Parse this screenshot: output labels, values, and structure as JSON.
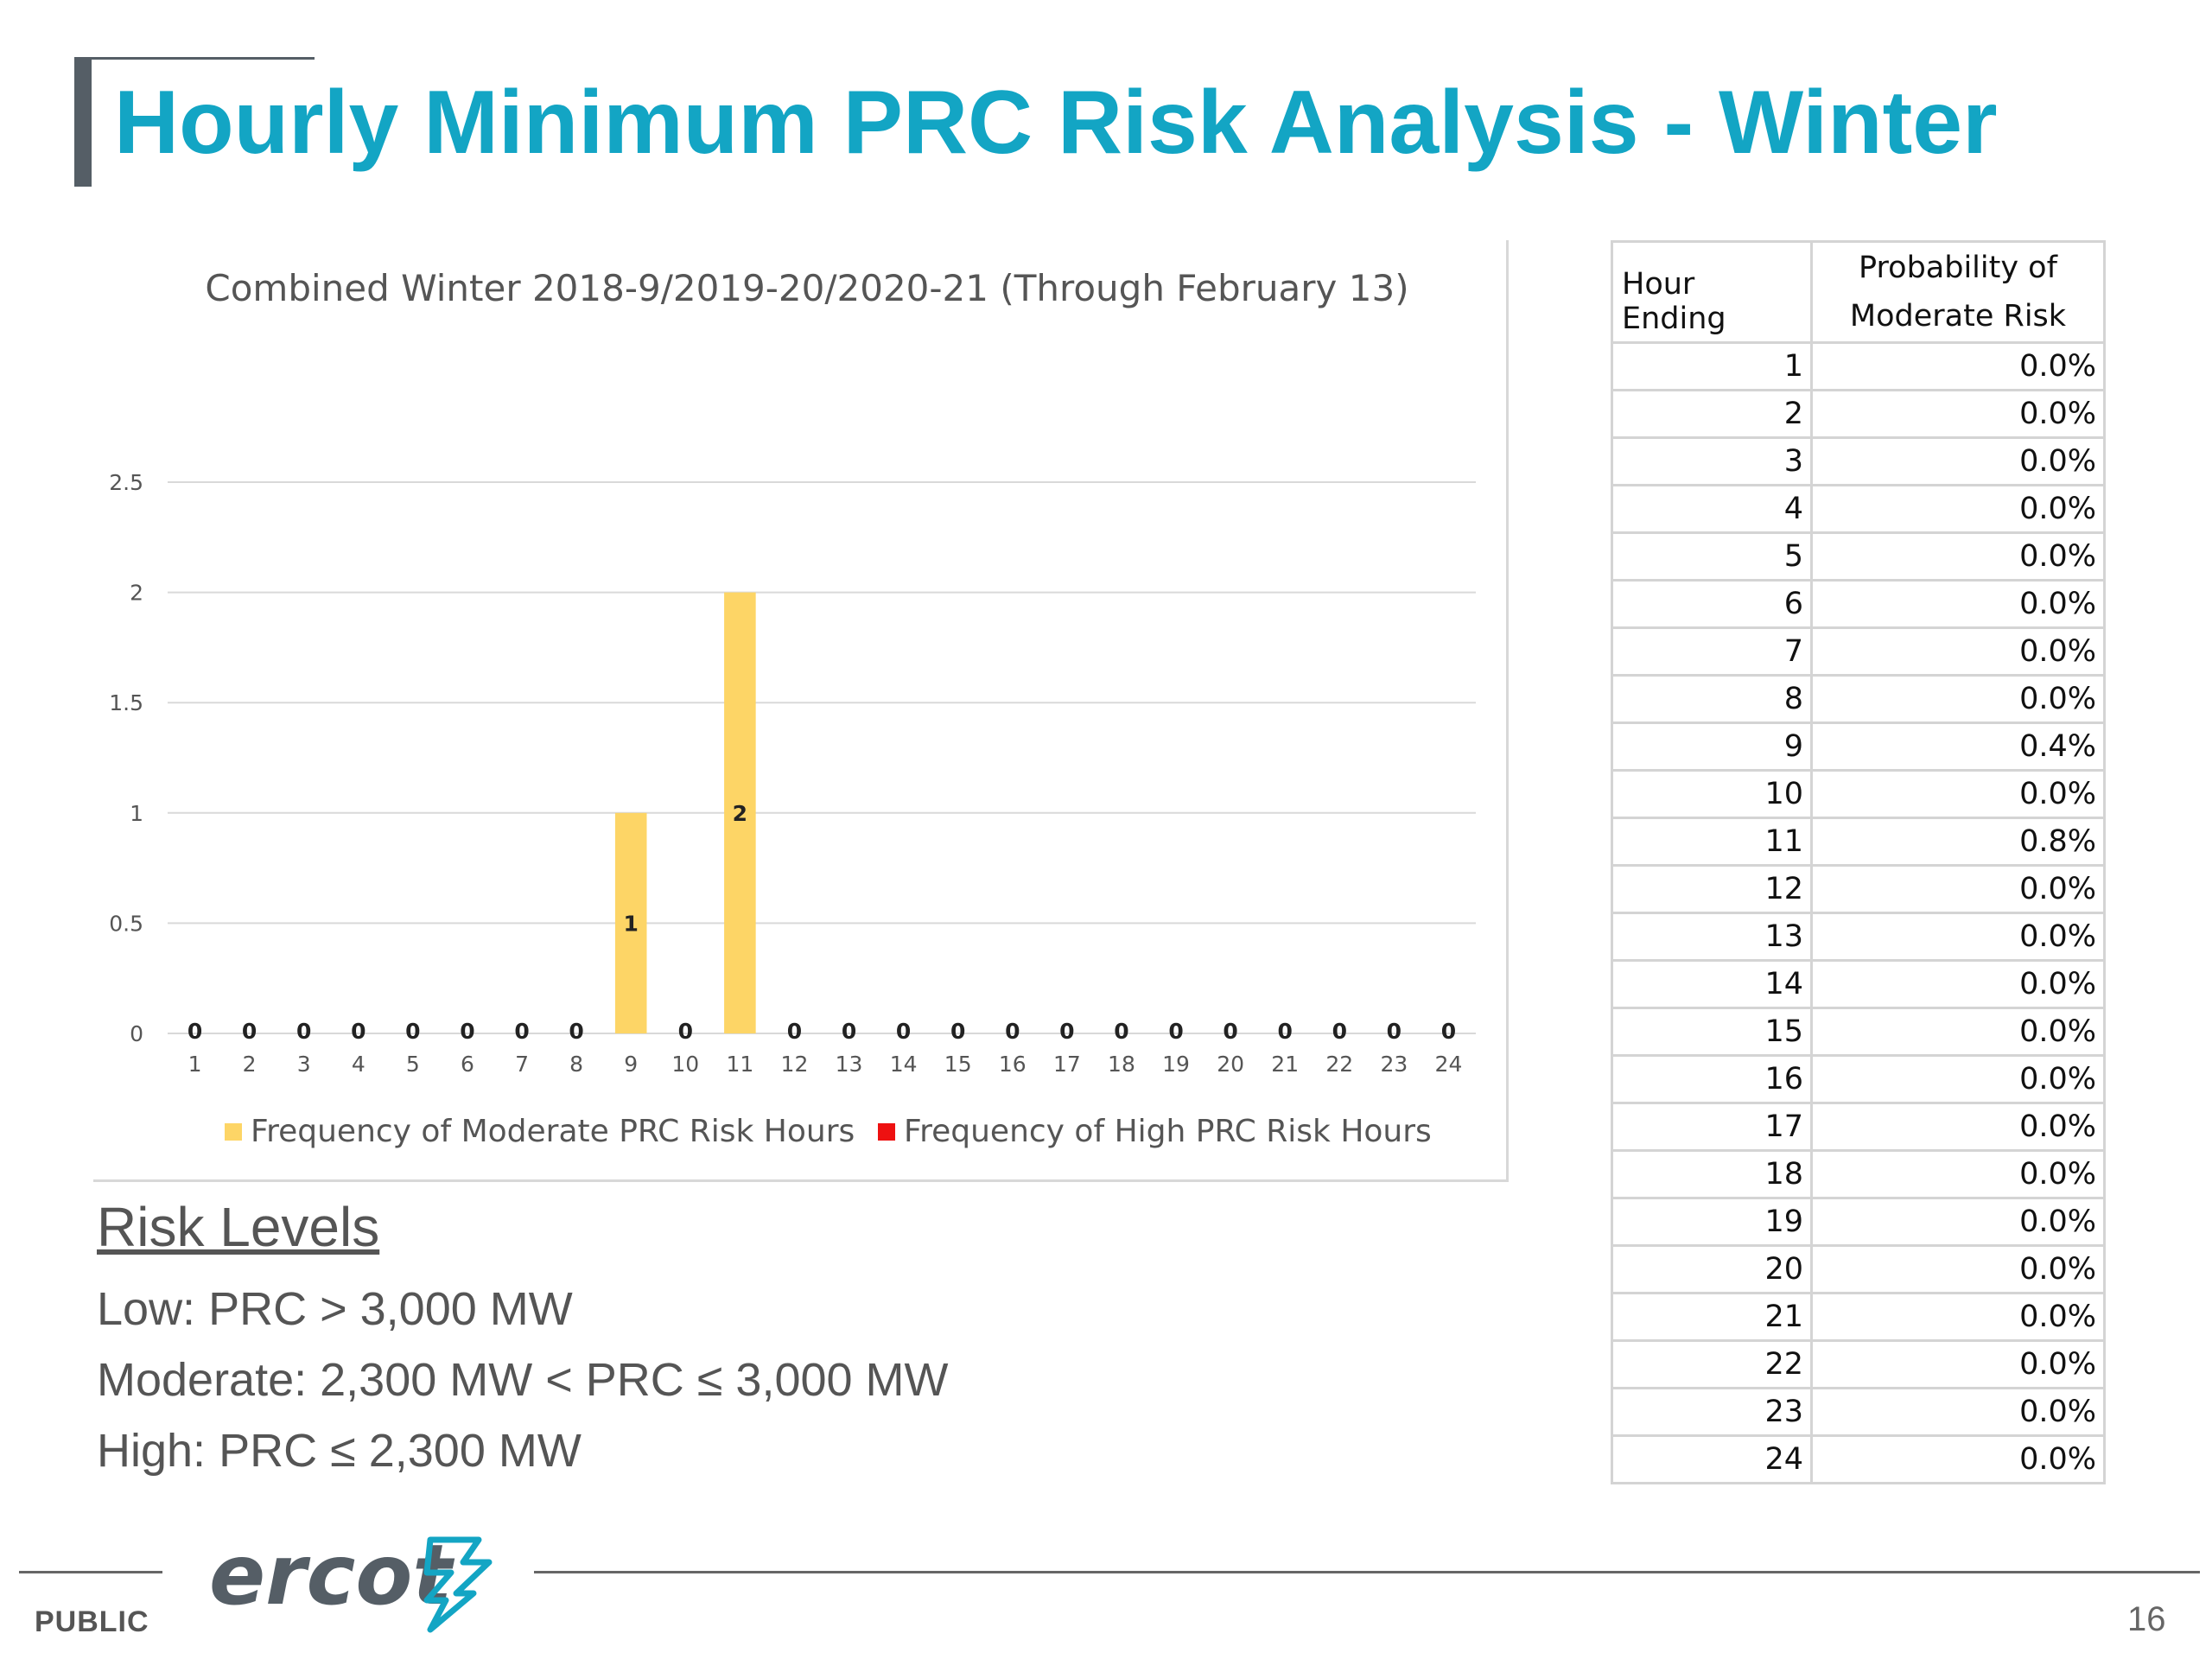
{
  "slide": {
    "title": "Hourly Minimum PRC Risk Analysis - Winter",
    "footer_left": "PUBLIC",
    "page_number": "16",
    "logo_text": "ercot"
  },
  "colors": {
    "title": "#13a5c4",
    "moderate": "#fdd566",
    "high": "#ee1111",
    "grid": "#d9d9d9",
    "logo": "#555e66",
    "logo_mark": "#13a5c4"
  },
  "chart_data": {
    "type": "bar",
    "title": "Combined Winter 2018-9/2019-20/2020-21 (Through February 13)",
    "categories": [
      "1",
      "2",
      "3",
      "4",
      "5",
      "6",
      "7",
      "8",
      "9",
      "10",
      "11",
      "12",
      "13",
      "14",
      "15",
      "16",
      "17",
      "18",
      "19",
      "20",
      "21",
      "22",
      "23",
      "24"
    ],
    "series": [
      {
        "name": "Frequency of Moderate PRC Risk Hours",
        "color": "#fdd566",
        "values": [
          0,
          0,
          0,
          0,
          0,
          0,
          0,
          0,
          1,
          0,
          2,
          0,
          0,
          0,
          0,
          0,
          0,
          0,
          0,
          0,
          0,
          0,
          0,
          0
        ]
      },
      {
        "name": "Frequency of High PRC Risk Hours",
        "color": "#ee1111",
        "values": [
          0,
          0,
          0,
          0,
          0,
          0,
          0,
          0,
          0,
          0,
          0,
          0,
          0,
          0,
          0,
          0,
          0,
          0,
          0,
          0,
          0,
          0,
          0,
          0
        ]
      }
    ],
    "y_ticks": [
      "0",
      "0.5",
      "1",
      "1.5",
      "2",
      "2.5"
    ],
    "ylim": [
      0,
      2.5
    ],
    "grid": true,
    "legend_position": "bottom"
  },
  "table": {
    "headers": [
      "Hour Ending",
      "Probability of",
      "Moderate Risk"
    ],
    "rows": [
      [
        "1",
        "0.0%"
      ],
      [
        "2",
        "0.0%"
      ],
      [
        "3",
        "0.0%"
      ],
      [
        "4",
        "0.0%"
      ],
      [
        "5",
        "0.0%"
      ],
      [
        "6",
        "0.0%"
      ],
      [
        "7",
        "0.0%"
      ],
      [
        "8",
        "0.0%"
      ],
      [
        "9",
        "0.4%"
      ],
      [
        "10",
        "0.0%"
      ],
      [
        "11",
        "0.8%"
      ],
      [
        "12",
        "0.0%"
      ],
      [
        "13",
        "0.0%"
      ],
      [
        "14",
        "0.0%"
      ],
      [
        "15",
        "0.0%"
      ],
      [
        "16",
        "0.0%"
      ],
      [
        "17",
        "0.0%"
      ],
      [
        "18",
        "0.0%"
      ],
      [
        "19",
        "0.0%"
      ],
      [
        "20",
        "0.0%"
      ],
      [
        "21",
        "0.0%"
      ],
      [
        "22",
        "0.0%"
      ],
      [
        "23",
        "0.0%"
      ],
      [
        "24",
        "0.0%"
      ]
    ]
  },
  "risk_levels": {
    "heading": "Risk Levels",
    "lines": [
      "Low: PRC > 3,000 MW",
      "Moderate: 2,300 MW < PRC ≤ 3,000 MW",
      "High: PRC ≤ 2,300 MW"
    ]
  }
}
